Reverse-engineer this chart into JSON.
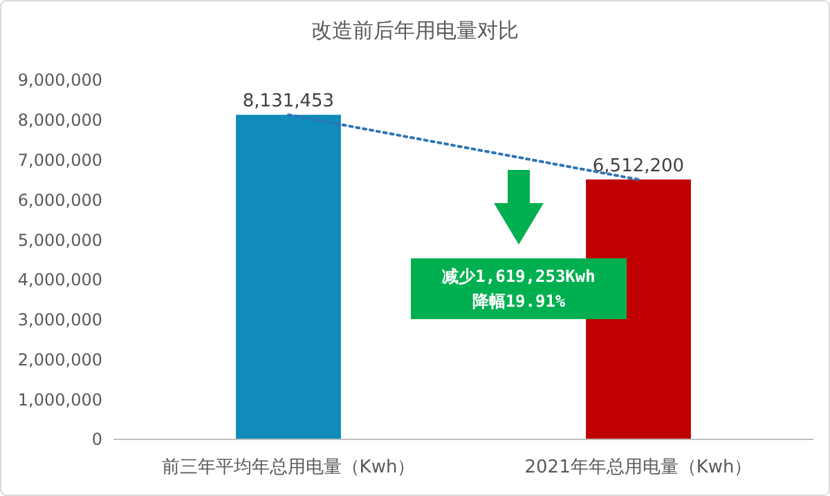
{
  "chart_data": {
    "type": "bar",
    "title": "改造前后年用电量对比",
    "categories": [
      "前三年平均年总用电量（Kwh）",
      "2021年年总用电量（Kwh）"
    ],
    "series": [
      {
        "colors": [
          "#0f8cba",
          "#c00000"
        ],
        "values": [
          8131453,
          6512200
        ],
        "value_labels": [
          "8,131,453",
          "6,512,200"
        ]
      },
      {
        "type": "line",
        "color": "#2e75b6",
        "line_style": "dotted",
        "marker": "none",
        "values": [
          8130000,
          6510000
        ]
      }
    ],
    "ylim": [
      0,
      9000000
    ],
    "yticks": [
      {
        "value": 0,
        "label": "0"
      },
      {
        "value": 1000000,
        "label": "1,000,000"
      },
      {
        "value": 2000000,
        "label": "2,000,000"
      },
      {
        "value": 3000000,
        "label": "3,000,000"
      },
      {
        "value": 4000000,
        "label": "4,000,000"
      },
      {
        "value": 5000000,
        "label": "5,000,000"
      },
      {
        "value": 6000000,
        "label": "6,000,000"
      },
      {
        "value": 7000000,
        "label": "7,000,000"
      },
      {
        "value": 8000000,
        "label": "8,000,000"
      },
      {
        "value": 9000000,
        "label": "9,000,000"
      }
    ],
    "grid": false,
    "annotations": [
      "减少1,619,253Kwh",
      "降幅19.91%"
    ]
  }
}
